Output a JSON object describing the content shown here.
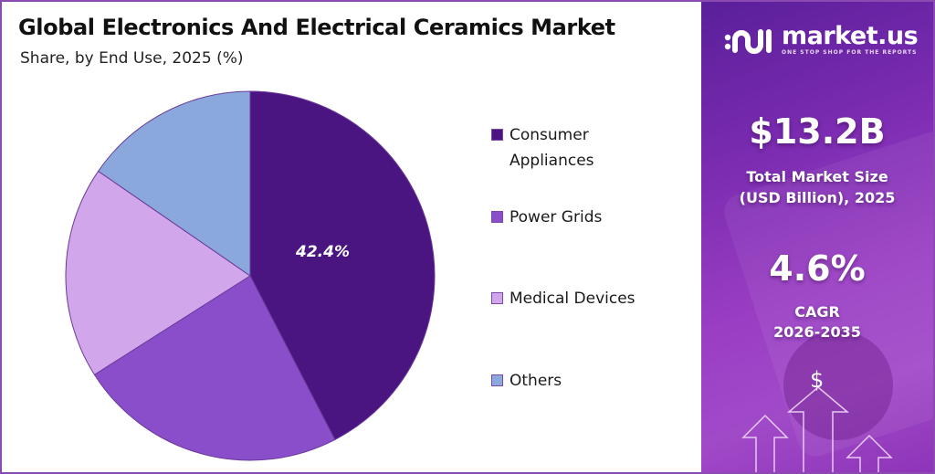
{
  "header": {
    "title": "Global Electronics And Electrical Ceramics Market",
    "subtitle": "Share, by End Use, 2025 (%)"
  },
  "chart_data": {
    "type": "pie",
    "title": "Global Electronics And Electrical Ceramics Market",
    "subtitle": "Share, by End Use, 2025 (%)",
    "categories": [
      "Consumer Appliances",
      "Power Grids",
      "Medical Devices",
      "Others"
    ],
    "values": [
      42.4,
      23.6,
      18.6,
      15.4
    ],
    "colors": [
      "#4a1580",
      "#8a4ecb",
      "#d2a6ea",
      "#8aa8dc"
    ],
    "data_labels": [
      "42.4%",
      "",
      "",
      ""
    ],
    "start_angle": "12 o'clock, clockwise",
    "legend_position": "right"
  },
  "pie": {
    "label_consumer": "42.4%"
  },
  "legend": {
    "items": [
      {
        "line1": "Consumer",
        "line2": "Appliances",
        "color": "#4a1580"
      },
      {
        "line1": "Power Grids",
        "color": "#8a4ecb"
      },
      {
        "line1": "Medical Devices",
        "color": "#d2a6ea"
      },
      {
        "line1": "Others",
        "color": "#8aa8dc"
      }
    ]
  },
  "sidebar": {
    "brand_name": "market.us",
    "brand_tagline": "ONE STOP SHOP FOR THE REPORTS",
    "market_size_value": "$13.2B",
    "market_size_label_1": "Total Market Size",
    "market_size_label_2": "(USD Billion), 2025",
    "cagr_value": "4.6%",
    "cagr_label_1": "CAGR",
    "cagr_label_2": "2026-2035",
    "dollar_symbol": "$"
  },
  "colors": {
    "frame_border": "#8a4ab0",
    "panel_gradient_start": "#5a1f9a",
    "panel_gradient_end": "#a14ac8"
  }
}
